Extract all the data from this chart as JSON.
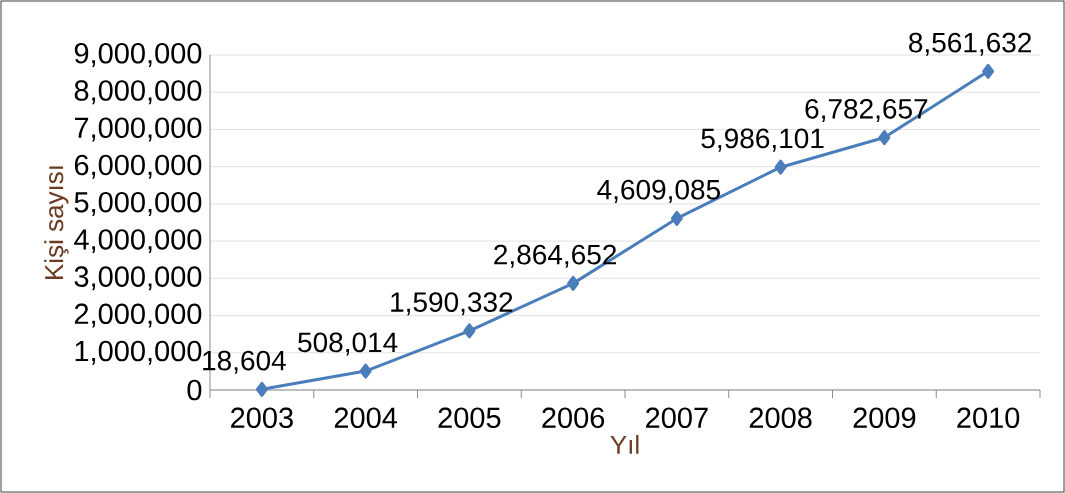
{
  "chart_data": {
    "type": "line",
    "xlabel": "Yıl",
    "ylabel": "Kişi sayısı",
    "categories": [
      "2003",
      "2004",
      "2005",
      "2006",
      "2007",
      "2008",
      "2009",
      "2010"
    ],
    "series": [
      {
        "color": "#4a7ebb",
        "values": [
          18604,
          508014,
          1590332,
          2864652,
          4609085,
          5986101,
          6782657,
          8561632
        ],
        "value_labels": [
          "18,604",
          "508,014",
          "1,590,332",
          "2,864,652",
          "4,609,085",
          "5,986,101",
          "6,782,657",
          "8,561,632"
        ]
      }
    ],
    "ylim": [
      0,
      9000000
    ],
    "yticks": [
      0,
      {
        "value": 1000000,
        "label": "1,000,000"
      },
      {
        "value": 2000000,
        "label": "2,000,000"
      },
      {
        "value": 3000000,
        "label": "3,000,000"
      },
      {
        "value": 4000000,
        "label": "4,000,000"
      },
      {
        "value": 5000000,
        "label": "5,000,000"
      },
      {
        "value": 6000000,
        "label": "6,000,000"
      },
      {
        "value": 7000000,
        "label": "7,000,000"
      },
      {
        "value": 8000000,
        "label": "8,000,000"
      },
      {
        "value": 9000000,
        "label": "9,000,000"
      }
    ],
    "grid": "y",
    "marker": "diamond",
    "line_style": "solid"
  }
}
